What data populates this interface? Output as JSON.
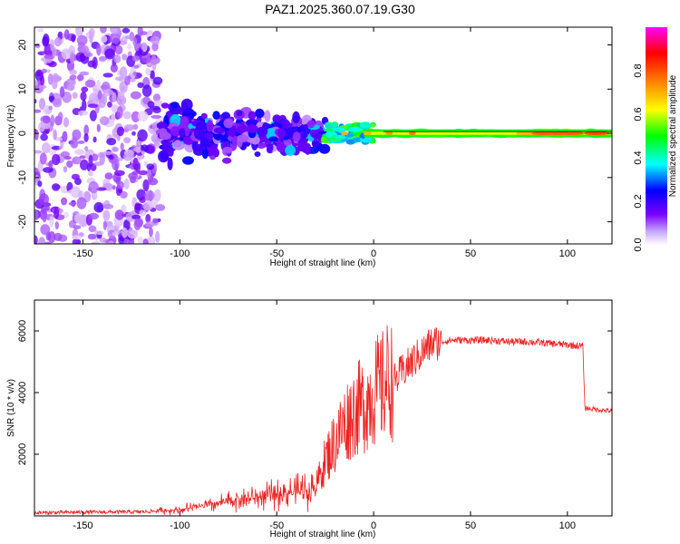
{
  "title": "PAZ1.2025.360.07.19.G30",
  "chart_data": [
    {
      "type": "heatmap",
      "name": "spectrogram",
      "xlabel": "Height of straight line (km)",
      "ylabel": "Frequency (Hz)",
      "xlim": [
        -175,
        123
      ],
      "ylim": [
        -25,
        24
      ],
      "xticks": [
        -150,
        -100,
        -50,
        0,
        50,
        100
      ],
      "yticks": [
        -20,
        -10,
        0,
        10,
        20
      ],
      "colorbar": {
        "label": "Normalized spectral amplitude",
        "range": [
          0,
          1
        ],
        "ticks": [
          0.0,
          0.2,
          0.4,
          0.6,
          0.8
        ],
        "tick_labels": [
          "0.0",
          "0.2",
          "0.4",
          "0.6",
          "0.8"
        ],
        "colormap": [
          "#ffffff",
          "#7a00ff",
          "#0000ff",
          "#00ffff",
          "#00ff00",
          "#ffff00",
          "#ff8000",
          "#ff0000",
          "#ff00ff"
        ]
      },
      "features": [
        {
          "x_range": [
            -175,
            -110
          ],
          "freq_spread": 24,
          "amplitude": 0.15,
          "description": "noisy scattered"
        },
        {
          "x_range": [
            -110,
            -25
          ],
          "center_freq": 0,
          "freq_spread": 8,
          "amplitude": 0.3
        },
        {
          "x_range": [
            -25,
            0
          ],
          "center_freq": 0,
          "freq_spread": 2,
          "amplitude": 0.45
        },
        {
          "x_range": [
            0,
            123
          ],
          "center_freq": 0,
          "freq_spread": 1,
          "amplitude": 0.6
        }
      ]
    },
    {
      "type": "line",
      "name": "snr",
      "xlabel": "Height of straight line (km)",
      "ylabel": "SNR (10 * v/v)",
      "xlim": [
        -175,
        123
      ],
      "ylim": [
        0,
        7000
      ],
      "xticks": [
        -150,
        -100,
        -50,
        0,
        50,
        100
      ],
      "yticks": [
        2000,
        4000,
        6000
      ],
      "color": "#ee2222",
      "series": [
        {
          "name": "SNR",
          "x": [
            -175,
            -150,
            -120,
            -100,
            -90,
            -80,
            -70,
            -60,
            -50,
            -40,
            -30,
            -25,
            -20,
            -15,
            -10,
            -5,
            0,
            5,
            8,
            10,
            15,
            20,
            30,
            40,
            50,
            60,
            70,
            80,
            90,
            100,
            108,
            109,
            115,
            123
          ],
          "y": [
            100,
            120,
            130,
            200,
            300,
            400,
            550,
            600,
            700,
            800,
            900,
            1800,
            2400,
            3000,
            3400,
            3600,
            4000,
            4200,
            4500,
            4300,
            4700,
            5000,
            5600,
            5700,
            5700,
            5700,
            5650,
            5650,
            5600,
            5550,
            5500,
            3500,
            3450,
            3400
          ]
        }
      ]
    }
  ]
}
